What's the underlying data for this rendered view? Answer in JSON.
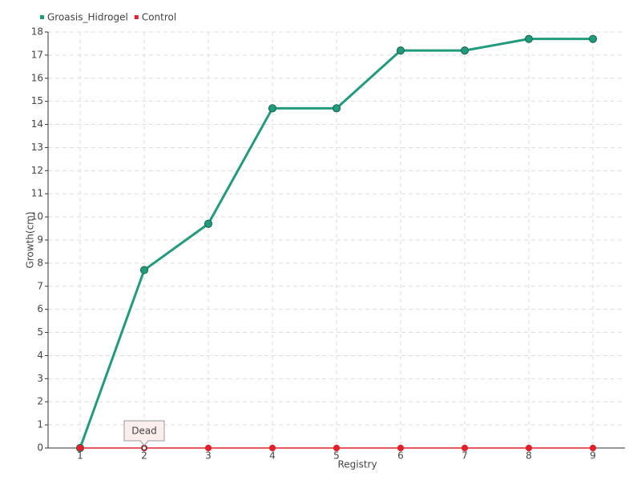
{
  "chart_data": {
    "type": "line",
    "x_label": "Registry",
    "y_label": "Growth(cm)",
    "categories": [
      "1",
      "2",
      "3",
      "4",
      "5",
      "6",
      "7",
      "8",
      "9"
    ],
    "series": [
      {
        "name": "Groasis_Hidrogel",
        "color": "#229a7c",
        "values": [
          0,
          7.7,
          9.7,
          14.7,
          14.7,
          17.2,
          17.2,
          17.7,
          17.7
        ]
      },
      {
        "name": "Control",
        "color": "#e2202c",
        "values": [
          0,
          0,
          0,
          0,
          0,
          0,
          0,
          0,
          0
        ]
      }
    ],
    "ylim": [
      0,
      18
    ],
    "yticks": [
      0,
      1,
      2,
      3,
      4,
      5,
      6,
      7,
      8,
      9,
      10,
      11,
      12,
      13,
      14,
      15,
      16,
      17,
      18
    ],
    "grid": true,
    "legend": "top-left",
    "annotations": [
      {
        "label": "Dead",
        "category": "2",
        "series": "Control"
      }
    ]
  }
}
